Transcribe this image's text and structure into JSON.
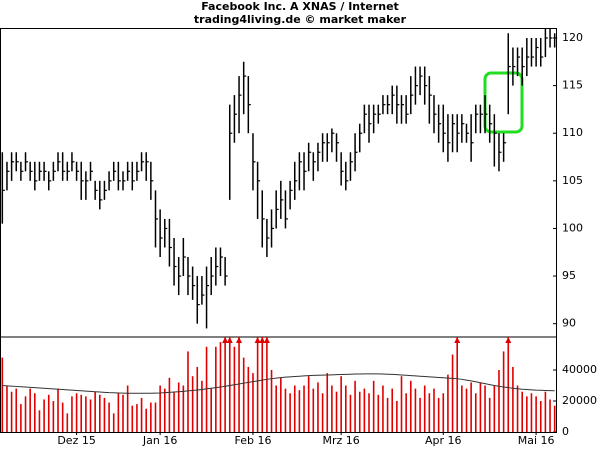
{
  "chart_data": [
    {
      "type": "hlc",
      "title": "Facebook Inc. A XNAS / Internet",
      "subtitle": "trading4living.de © market maker",
      "color": "#000000",
      "ylim": [
        88.6,
        121.05
      ],
      "yticks": [
        90,
        95,
        100,
        105,
        110,
        115,
        120
      ],
      "high": [
        108,
        107,
        108,
        108,
        107,
        108,
        107,
        107,
        107,
        107,
        106,
        107,
        108,
        108,
        107,
        108,
        107,
        107,
        106,
        107,
        105,
        105,
        105,
        106,
        107,
        107,
        106,
        107,
        107,
        107,
        108,
        108,
        107,
        104,
        102,
        101,
        101,
        99,
        97,
        99,
        97,
        96,
        95,
        95,
        96,
        97,
        98,
        98,
        97,
        113,
        114,
        116,
        117.5,
        116,
        110,
        107,
        104,
        101,
        102,
        104,
        105,
        104,
        105,
        107,
        108,
        108,
        109,
        108,
        109,
        110,
        110,
        110.5,
        110,
        108,
        107,
        108,
        110,
        111,
        113,
        113,
        113,
        113,
        114,
        114,
        115,
        115,
        114,
        114,
        116,
        117,
        117,
        117,
        116,
        114,
        113,
        113,
        112,
        112,
        112,
        112,
        111,
        112,
        113,
        113,
        114,
        113,
        112,
        110,
        110,
        120.5,
        119,
        119,
        119,
        120,
        120,
        120,
        120,
        121,
        121,
        120.5
      ],
      "low": [
        100.5,
        104,
        105,
        106,
        105,
        106,
        105,
        104,
        105,
        105,
        104,
        105,
        106,
        105,
        105,
        106,
        105,
        103,
        103,
        105,
        103,
        102,
        103,
        104,
        105,
        104,
        104,
        105,
        104,
        105,
        106,
        105,
        103,
        98,
        97,
        98,
        96,
        94,
        93,
        95,
        93,
        92.5,
        90,
        92,
        89.5,
        93,
        94,
        95,
        94,
        103,
        109,
        110,
        112,
        110,
        104,
        101,
        98,
        97,
        98,
        100,
        101,
        100,
        102,
        103,
        104,
        104,
        106,
        105,
        106,
        107,
        107,
        108,
        107,
        104.5,
        104,
        105,
        106,
        108,
        110,
        109,
        110,
        111,
        112,
        112,
        112,
        111,
        111,
        111,
        112,
        113,
        114,
        113,
        111,
        110,
        109,
        108,
        107,
        108,
        108,
        109,
        109,
        107,
        110,
        110,
        110,
        109,
        106.5,
        106,
        107,
        112,
        115,
        116,
        115,
        116,
        117,
        117,
        117,
        118,
        119,
        119
      ],
      "close": [
        104,
        106,
        107,
        107,
        106,
        107,
        106,
        105,
        106,
        106,
        105,
        106,
        107,
        106,
        106,
        107,
        106,
        105,
        105,
        106,
        104,
        103,
        104,
        105,
        106,
        105,
        105,
        106,
        105,
        106,
        107,
        107,
        105,
        101,
        99,
        100,
        98,
        96,
        95,
        97,
        95,
        94,
        92,
        93,
        94,
        95,
        96,
        97,
        95,
        110,
        112,
        114,
        116,
        113,
        107,
        105,
        101,
        99,
        100,
        102,
        103,
        101,
        104,
        105,
        107,
        106,
        108,
        107,
        108,
        109,
        109,
        110,
        109,
        106,
        105,
        107,
        108,
        110,
        112,
        111,
        112,
        112,
        113,
        113,
        114,
        113,
        113,
        112,
        114,
        115,
        116,
        115,
        114,
        112,
        111,
        110,
        109,
        111,
        110,
        111,
        110,
        109,
        112,
        112,
        112,
        111,
        110,
        108,
        109,
        117,
        117,
        118,
        117,
        118,
        118,
        119,
        118,
        120,
        120,
        120
      ]
    },
    {
      "type": "bar",
      "color": "#e00000",
      "ylim": [
        0,
        61300
      ],
      "yticks": [
        0,
        20000,
        40000
      ],
      "categories": [
        null,
        null,
        null,
        null,
        null,
        null,
        null,
        null,
        null,
        null,
        null,
        null,
        null,
        null,
        null,
        null,
        "Dez 15",
        null,
        null,
        null,
        null,
        null,
        null,
        null,
        null,
        null,
        null,
        null,
        null,
        null,
        null,
        null,
        null,
        null,
        "Jan 16",
        null,
        null,
        null,
        null,
        null,
        null,
        null,
        null,
        null,
        null,
        null,
        null,
        null,
        null,
        null,
        null,
        null,
        null,
        null,
        "Feb 16",
        null,
        null,
        null,
        null,
        null,
        null,
        null,
        null,
        null,
        null,
        null,
        null,
        null,
        null,
        null,
        null,
        null,
        null,
        "Mrz 16",
        null,
        null,
        null,
        null,
        null,
        null,
        null,
        null,
        null,
        null,
        null,
        null,
        null,
        null,
        null,
        null,
        null,
        null,
        null,
        null,
        null,
        "Apr 16",
        null,
        null,
        null,
        null,
        null,
        null,
        null,
        null,
        null,
        null,
        null,
        null,
        null,
        null,
        null,
        null,
        null,
        null,
        null,
        "Mai 16",
        null,
        null,
        null,
        null
      ],
      "values": [
        48000,
        30000,
        26000,
        28000,
        18000,
        23000,
        28000,
        25000,
        14000,
        21000,
        24000,
        20000,
        28000,
        19000,
        12000,
        23000,
        25000,
        24000,
        23000,
        21000,
        26000,
        24000,
        22000,
        19000,
        12000,
        25000,
        24000,
        30000,
        17000,
        18000,
        22000,
        15000,
        19000,
        19000,
        30000,
        28000,
        35000,
        26000,
        32000,
        30000,
        52000,
        36000,
        42000,
        33000,
        55000,
        28000,
        55000,
        58000,
        62000,
        70000,
        55000,
        70000,
        48000,
        42000,
        38000,
        65000,
        70000,
        70000,
        40000,
        30000,
        35000,
        28000,
        25000,
        30000,
        27000,
        30000,
        36000,
        28000,
        32000,
        25000,
        38000,
        30000,
        26000,
        36000,
        30000,
        24000,
        33000,
        26000,
        28000,
        25000,
        33000,
        24000,
        30000,
        22000,
        28000,
        20000,
        36000,
        25000,
        33000,
        28000,
        22000,
        30000,
        25000,
        28000,
        22000,
        25000,
        37000,
        50000,
        65000,
        30000,
        28000,
        32000,
        25000,
        32000,
        30000,
        22000,
        30000,
        40000,
        52000,
        70000,
        42000,
        30000,
        26000,
        23000,
        25000,
        23000,
        20000,
        26000,
        21000,
        17000
      ],
      "line": {
        "color": "#333333",
        "values": [
          30000,
          29800,
          29600,
          29400,
          29200,
          29000,
          28800,
          28600,
          28400,
          28200,
          28000,
          27800,
          27600,
          27400,
          27200,
          27000,
          26800,
          26600,
          26400,
          26200,
          26000,
          25800,
          25600,
          25400,
          25300,
          25200,
          25100,
          25000,
          25000,
          25000,
          25000,
          25000,
          25000,
          25100,
          25200,
          25400,
          25600,
          25800,
          26000,
          26200,
          26500,
          26800,
          27100,
          27400,
          27800,
          28200,
          28600,
          29000,
          29500,
          30000,
          30500,
          31000,
          31500,
          32000,
          32500,
          33000,
          33500,
          34000,
          34400,
          34800,
          35100,
          35400,
          35600,
          35800,
          36000,
          36200,
          36400,
          36500,
          36600,
          36700,
          36800,
          36900,
          37000,
          37100,
          37200,
          37300,
          37400,
          37400,
          37500,
          37500,
          37500,
          37500,
          37400,
          37300,
          37200,
          37000,
          36800,
          36600,
          36400,
          36200,
          36000,
          35800,
          35600,
          35400,
          35200,
          35000,
          34800,
          34600,
          34400,
          34000,
          33500,
          33000,
          32400,
          31800,
          31200,
          30600,
          30000,
          29500,
          29000,
          28600,
          28200,
          27900,
          27600,
          27400,
          27200,
          27000,
          26900,
          26800,
          26700,
          26600
        ]
      }
    }
  ]
}
